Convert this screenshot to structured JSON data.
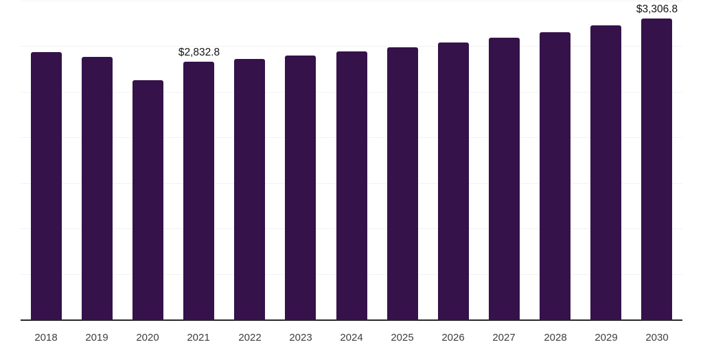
{
  "chart_data": {
    "type": "bar",
    "title": "",
    "xlabel": "",
    "ylabel": "",
    "currency": "USD",
    "categories": [
      "2018",
      "2019",
      "2020",
      "2021",
      "2022",
      "2023",
      "2024",
      "2025",
      "2026",
      "2027",
      "2028",
      "2029",
      "2030"
    ],
    "values": [
      2935,
      2885,
      2625,
      2832.8,
      2860,
      2895,
      2940,
      2985,
      3040,
      3095,
      3150,
      3230,
      3306.8
    ],
    "point_labels": [
      "",
      "",
      "",
      "$2,832.8",
      "",
      "",
      "",
      "",
      "",
      "",
      "",
      "",
      "$3,306.8"
    ],
    "ylim": [
      0,
      3517
    ],
    "gridline_values": [
      500,
      1000,
      1500,
      2000,
      2500,
      3000,
      3500
    ],
    "grid": "horizontal-faint",
    "legend": "none",
    "colors": {
      "bar": "#351249",
      "background": "#ffffff",
      "gridline": "#f2f2f2",
      "axis_line": "#262626",
      "tick_label": "#3d3d3d",
      "data_label": "#111111"
    }
  }
}
